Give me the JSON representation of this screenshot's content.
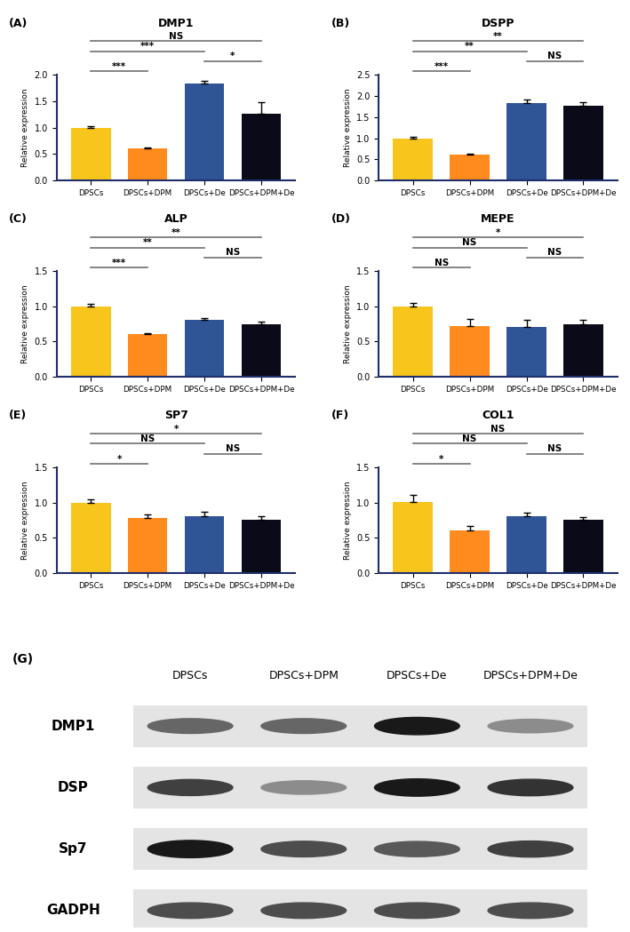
{
  "chart_data": [
    {
      "type": "bar",
      "panel": "(A)",
      "title": "DMP1",
      "y_label": "Relative expression",
      "categories": [
        "DPSCs",
        "DPSCs+DPM",
        "DPSCs+De",
        "DPSCs+DPM+De"
      ],
      "values": [
        1.0,
        0.61,
        1.83,
        1.26
      ],
      "errors": [
        0.02,
        0.02,
        0.05,
        0.22
      ],
      "colors": [
        "#F8C51C",
        "#FF8A1E",
        "#2F5597",
        "#0A0A18"
      ],
      "ylim": [
        0,
        2.0
      ],
      "yticks": [
        {
          "value": 0,
          "label": "0.0"
        },
        {
          "value": 0.5,
          "label": "0.5"
        },
        {
          "value": 1.0,
          "label": "1.0"
        },
        {
          "value": 1.5,
          "label": "1.5"
        },
        {
          "value": 2.0,
          "label": "2.0"
        }
      ],
      "significance": [
        {
          "from": 0,
          "to": 1,
          "label": "***"
        },
        {
          "from": 2,
          "to": 3,
          "label": "*"
        },
        {
          "from": 0,
          "to": 2,
          "label": "***"
        },
        {
          "from": 0,
          "to": 3,
          "label": "NS"
        }
      ]
    },
    {
      "type": "bar",
      "panel": "(B)",
      "title": "DSPP",
      "y_label": "Relative expression",
      "categories": [
        "DPSCs",
        "DPSCs+DPM",
        "DPSCs+De",
        "DPSCs+DPM+De"
      ],
      "values": [
        1.0,
        0.61,
        1.82,
        1.77
      ],
      "errors": [
        0.03,
        0.02,
        0.1,
        0.08
      ],
      "colors": [
        "#F8C51C",
        "#FF8A1E",
        "#2F5597",
        "#0A0A18"
      ],
      "ylim": [
        0,
        2.5
      ],
      "yticks": [
        {
          "value": 0,
          "label": "0.0"
        },
        {
          "value": 0.5,
          "label": "0.5"
        },
        {
          "value": 1.0,
          "label": "1.0"
        },
        {
          "value": 1.5,
          "label": "1.5"
        },
        {
          "value": 2.0,
          "label": "2.0"
        },
        {
          "value": 2.5,
          "label": "2.5"
        }
      ],
      "significance": [
        {
          "from": 0,
          "to": 1,
          "label": "***"
        },
        {
          "from": 2,
          "to": 3,
          "label": "NS"
        },
        {
          "from": 0,
          "to": 2,
          "label": "**"
        },
        {
          "from": 0,
          "to": 3,
          "label": "**"
        }
      ]
    },
    {
      "type": "bar",
      "panel": "(C)",
      "title": "ALP",
      "y_label": "Relative expression",
      "categories": [
        "DPSCs",
        "DPSCs+DPM",
        "DPSCs+De",
        "DPSCs+DPM+De"
      ],
      "values": [
        1.0,
        0.61,
        0.81,
        0.75
      ],
      "errors": [
        0.03,
        0.01,
        0.02,
        0.03
      ],
      "colors": [
        "#F8C51C",
        "#FF8A1E",
        "#2F5597",
        "#0A0A18"
      ],
      "ylim": [
        0,
        1.5
      ],
      "yticks": [
        {
          "value": 0,
          "label": "0.0"
        },
        {
          "value": 0.5,
          "label": "0.5"
        },
        {
          "value": 1.0,
          "label": "1.0"
        },
        {
          "value": 1.5,
          "label": "1.5"
        }
      ],
      "significance": [
        {
          "from": 0,
          "to": 1,
          "label": "***"
        },
        {
          "from": 2,
          "to": 3,
          "label": "NS"
        },
        {
          "from": 0,
          "to": 2,
          "label": "**"
        },
        {
          "from": 0,
          "to": 3,
          "label": "**"
        }
      ]
    },
    {
      "type": "bar",
      "panel": "(D)",
      "title": "MEPE",
      "y_label": "Relative expression",
      "categories": [
        "DPSCs",
        "DPSCs+DPM",
        "DPSCs+De",
        "DPSCs+DPM+De"
      ],
      "values": [
        1.0,
        0.72,
        0.71,
        0.75
      ],
      "errors": [
        0.05,
        0.1,
        0.1,
        0.06
      ],
      "colors": [
        "#F8C51C",
        "#FF8A1E",
        "#2F5597",
        "#0A0A18"
      ],
      "ylim": [
        0,
        1.5
      ],
      "yticks": [
        {
          "value": 0,
          "label": "0.0"
        },
        {
          "value": 0.5,
          "label": "0.5"
        },
        {
          "value": 1.0,
          "label": "1.0"
        },
        {
          "value": 1.5,
          "label": "1.5"
        }
      ],
      "significance": [
        {
          "from": 0,
          "to": 1,
          "label": "NS"
        },
        {
          "from": 2,
          "to": 3,
          "label": "NS"
        },
        {
          "from": 0,
          "to": 2,
          "label": "NS"
        },
        {
          "from": 0,
          "to": 3,
          "label": "*"
        }
      ]
    },
    {
      "type": "bar",
      "panel": "(E)",
      "title": "SP7",
      "y_label": "Relative expression",
      "categories": [
        "DPSCs",
        "DPSCs+DPM",
        "DPSCs+De",
        "DPSCs+DPM+De"
      ],
      "values": [
        1.0,
        0.78,
        0.81,
        0.76
      ],
      "errors": [
        0.05,
        0.05,
        0.06,
        0.05
      ],
      "colors": [
        "#F8C51C",
        "#FF8A1E",
        "#2F5597",
        "#0A0A18"
      ],
      "ylim": [
        0,
        1.5
      ],
      "yticks": [
        {
          "value": 0,
          "label": "0.0"
        },
        {
          "value": 0.5,
          "label": "0.5"
        },
        {
          "value": 1.0,
          "label": "1.0"
        },
        {
          "value": 1.5,
          "label": "1.5"
        }
      ],
      "significance": [
        {
          "from": 0,
          "to": 1,
          "label": "*"
        },
        {
          "from": 2,
          "to": 3,
          "label": "NS"
        },
        {
          "from": 0,
          "to": 2,
          "label": "NS"
        },
        {
          "from": 0,
          "to": 3,
          "label": "*"
        }
      ]
    },
    {
      "type": "bar",
      "panel": "(F)",
      "title": "COL1",
      "y_label": "Relative expression",
      "categories": [
        "DPSCs",
        "DPSCs+DPM",
        "DPSCs+De",
        "DPSCs+DPM+De"
      ],
      "values": [
        1.01,
        0.61,
        0.8,
        0.75
      ],
      "errors": [
        0.1,
        0.06,
        0.05,
        0.04
      ],
      "colors": [
        "#F8C51C",
        "#FF8A1E",
        "#2F5597",
        "#0A0A18"
      ],
      "ylim": [
        0,
        1.5
      ],
      "yticks": [
        {
          "value": 0,
          "label": "0.0"
        },
        {
          "value": 0.5,
          "label": "0.5"
        },
        {
          "value": 1.0,
          "label": "1.0"
        },
        {
          "value": 1.5,
          "label": "1.5"
        }
      ],
      "significance": [
        {
          "from": 0,
          "to": 1,
          "label": "*"
        },
        {
          "from": 2,
          "to": 3,
          "label": "NS"
        },
        {
          "from": 0,
          "to": 2,
          "label": "NS"
        },
        {
          "from": 0,
          "to": 3,
          "label": "NS"
        }
      ]
    }
  ],
  "western_blot": {
    "panel": "(G)",
    "lanes": [
      "DPSCs",
      "DPSCs+DPM",
      "DPSCs+De",
      "DPSCs+DPM+De"
    ],
    "rows": [
      {
        "name": "DMP1",
        "intensities": [
          0.6,
          0.6,
          0.9,
          0.45
        ]
      },
      {
        "name": "DSP",
        "intensities": [
          0.75,
          0.45,
          0.9,
          0.8
        ]
      },
      {
        "name": "Sp7",
        "intensities": [
          0.9,
          0.7,
          0.65,
          0.75
        ]
      },
      {
        "name": "GADPH",
        "intensities": [
          0.7,
          0.7,
          0.7,
          0.7
        ]
      }
    ]
  }
}
